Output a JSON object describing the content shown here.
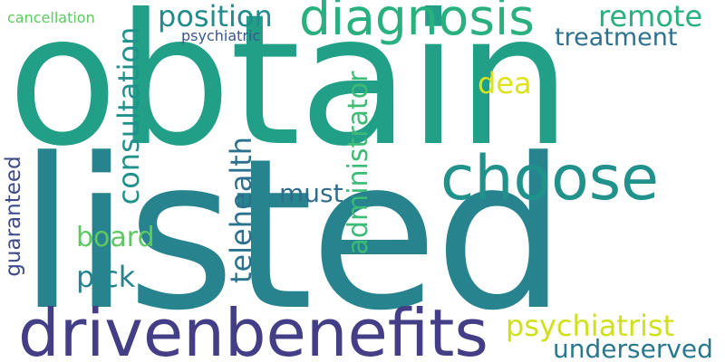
{
  "words": [
    {
      "key": "obtain",
      "text": "obtain",
      "color": "#21a087"
    },
    {
      "key": "listed",
      "text": "listed",
      "color": "#27838e"
    },
    {
      "key": "drivenbenefits",
      "text": "drivenbenefits",
      "color": "#433e85"
    },
    {
      "key": "choose",
      "text": "choose",
      "color": "#21918c"
    },
    {
      "key": "diagnosis",
      "text": "diagnosis",
      "color": "#2ab07f"
    },
    {
      "key": "position",
      "text": "position",
      "color": "#228c8d"
    },
    {
      "key": "remote",
      "text": "remote",
      "color": "#2ab07f"
    },
    {
      "key": "treatment",
      "text": "treatment",
      "color": "#2c728e"
    },
    {
      "key": "psychiatric",
      "text": "psychiatric",
      "color": "#39568c"
    },
    {
      "key": "cancellation",
      "text": "cancellation",
      "color": "#5ec962"
    },
    {
      "key": "consultation",
      "text": "consultation",
      "color": "#21918c"
    },
    {
      "key": "administrator",
      "text": "administrator",
      "color": "#3bbb75"
    },
    {
      "key": "dea",
      "text": "dea",
      "color": "#dde318"
    },
    {
      "key": "telehealth",
      "text": "telehealth",
      "color": "#2c728e"
    },
    {
      "key": "must",
      "text": "must",
      "color": "#2f6c8e"
    },
    {
      "key": "board",
      "text": "board",
      "color": "#5ec962"
    },
    {
      "key": "pick",
      "text": "pick",
      "color": "#25858e"
    },
    {
      "key": "guaranteed",
      "text": "guaranteed",
      "color": "#3e4a89"
    },
    {
      "key": "psychiatrist",
      "text": "psychiatrist",
      "color": "#d0e11c"
    },
    {
      "key": "underserved",
      "text": "underserved",
      "color": "#2a788e"
    }
  ]
}
